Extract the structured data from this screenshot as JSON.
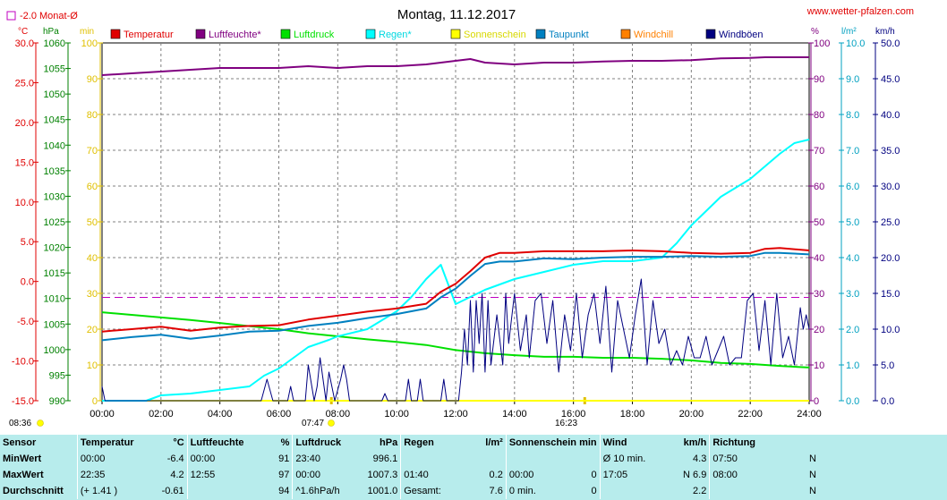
{
  "header": {
    "title": "Montag, 11.12.2017",
    "site": "www.wetter-pfalzen.com",
    "monthly_avg_label": "-2.0 Monat-Ø"
  },
  "axes": {
    "units": {
      "temp": "°C",
      "pressure": "hPa",
      "sun": "min",
      "humidity": "%",
      "rain": "l/m²",
      "wind": "km/h"
    },
    "temp_ticks": [
      "30.0",
      "25.0",
      "20.0",
      "15.0",
      "10.0",
      "5.0",
      "0.0",
      "-5.0",
      "-10.0",
      "-15.0"
    ],
    "pressure_ticks": [
      "1060",
      "1055",
      "1050",
      "1045",
      "1040",
      "1035",
      "1030",
      "1025",
      "1020",
      "1015",
      "1010",
      "1005",
      "1000",
      "995",
      "990"
    ],
    "sun_ticks": [
      "100",
      "90",
      "80",
      "70",
      "60",
      "50",
      "40",
      "30",
      "20",
      "10",
      "0"
    ],
    "humidity_ticks": [
      "100",
      "90",
      "80",
      "70",
      "60",
      "50",
      "40",
      "30",
      "20",
      "10",
      "0"
    ],
    "rain_ticks": [
      "10.0",
      "9.0",
      "8.0",
      "7.0",
      "6.0",
      "5.0",
      "4.0",
      "3.0",
      "2.0",
      "1.0",
      "0.0"
    ],
    "wind_ticks": [
      "50.0",
      "45.0",
      "40.0",
      "35.0",
      "30.0",
      "25.0",
      "20.0",
      "15.0",
      "10.0",
      "5.0",
      "0.0"
    ],
    "x_ticks": [
      "00:00",
      "02:00",
      "04:00",
      "06:00",
      "08:00",
      "10:00",
      "12:00",
      "14:00",
      "16:00",
      "18:00",
      "20:00",
      "22:00",
      "24:00"
    ],
    "sunrise": "08:36",
    "sunset": "16:23",
    "sun_marker": "07:47"
  },
  "legend": [
    {
      "label": "Temperatur",
      "color": "#e00000"
    },
    {
      "label": "Luftfeuchte*",
      "color": "#800080"
    },
    {
      "label": "Luftdruck",
      "color": "#00e000"
    },
    {
      "label": "Regen*",
      "color": "#00ffff"
    },
    {
      "label": "Sonnenschein",
      "color": "#ffff00"
    },
    {
      "label": "Taupunkt",
      "color": "#0080c0"
    },
    {
      "label": "Windchill",
      "color": "#ff8000"
    },
    {
      "label": "Windböen",
      "color": "#000080"
    }
  ],
  "chart_data": {
    "type": "line",
    "x_unit": "hour",
    "xlim": [
      0,
      24
    ],
    "grid": true,
    "monthly_avg_temp": -2.0,
    "series": [
      {
        "name": "Temperatur",
        "axis": "temp",
        "ylim": [
          -15,
          30
        ],
        "color": "#e00000",
        "x": [
          0,
          1,
          2,
          3,
          4,
          5,
          6,
          7,
          8,
          9,
          10,
          11,
          11.5,
          12,
          12.5,
          13,
          13.5,
          14,
          15,
          16,
          17,
          18,
          19,
          20,
          21,
          22,
          22.5,
          23,
          24
        ],
        "y": [
          -6.3,
          -6.0,
          -5.7,
          -6.2,
          -5.8,
          -5.6,
          -5.5,
          -4.8,
          -4.3,
          -3.8,
          -3.4,
          -2.8,
          -1.3,
          -0.3,
          1.3,
          3.0,
          3.6,
          3.6,
          3.8,
          3.8,
          3.8,
          3.9,
          3.8,
          3.6,
          3.5,
          3.6,
          4.1,
          4.2,
          3.9
        ]
      },
      {
        "name": "Luftfeuchte*",
        "axis": "humidity",
        "ylim": [
          0,
          100
        ],
        "color": "#800080",
        "x": [
          0,
          1,
          2,
          3,
          4,
          5,
          6,
          7,
          8,
          9,
          10,
          11,
          12,
          12.5,
          13,
          14,
          15,
          16,
          17,
          18,
          19,
          20,
          21,
          22,
          22.5,
          23,
          24
        ],
        "y": [
          91,
          91.5,
          92,
          92.5,
          93,
          93,
          93,
          93.5,
          93,
          93.5,
          93.5,
          94,
          95,
          95.5,
          94.5,
          94,
          94.5,
          94.5,
          94.8,
          95,
          95,
          95.2,
          95.7,
          95.8,
          96,
          96,
          96
        ]
      },
      {
        "name": "Luftdruck",
        "axis": "pressure",
        "ylim": [
          990,
          1060
        ],
        "color": "#00e000",
        "x": [
          0,
          1,
          2,
          3,
          4,
          5,
          6,
          7,
          8,
          9,
          10,
          11,
          12,
          13,
          14,
          15,
          16,
          17,
          18,
          19,
          20,
          21,
          22,
          23,
          24
        ],
        "y": [
          1007.3,
          1006.8,
          1006.3,
          1005.8,
          1005.2,
          1004.6,
          1004.0,
          1003.2,
          1002.6,
          1002.0,
          1001.5,
          1000.9,
          999.9,
          999.3,
          998.9,
          998.6,
          998.6,
          998.4,
          998.4,
          998.2,
          997.9,
          997.4,
          997.2,
          996.8,
          996.5
        ]
      },
      {
        "name": "Regen*",
        "axis": "rain",
        "ylim": [
          0,
          10
        ],
        "color": "#00ffff",
        "x": [
          0,
          1.5,
          2,
          3,
          4,
          5,
          5.5,
          6,
          7,
          7.7,
          8,
          9,
          10,
          10.5,
          11,
          11.5,
          12,
          12.5,
          13,
          14,
          15,
          16,
          17,
          18,
          19,
          19.5,
          20,
          21,
          22,
          23,
          23.5,
          24
        ],
        "y": [
          0,
          0,
          0.15,
          0.2,
          0.3,
          0.4,
          0.7,
          0.9,
          1.5,
          1.7,
          1.8,
          2.0,
          2.5,
          2.9,
          3.4,
          3.8,
          2.7,
          2.9,
          3.1,
          3.4,
          3.6,
          3.8,
          3.9,
          3.9,
          4.0,
          4.4,
          4.9,
          5.7,
          6.2,
          6.9,
          7.2,
          7.3
        ]
      },
      {
        "name": "Sonnenschein",
        "axis": "sun",
        "ylim": [
          0,
          100
        ],
        "color": "#ffff00",
        "x": [
          0,
          24
        ],
        "y": [
          0,
          0
        ]
      },
      {
        "name": "Taupunkt",
        "axis": "temp",
        "ylim": [
          -15,
          30
        ],
        "color": "#0080c0",
        "x": [
          0,
          1,
          2,
          3,
          4,
          5,
          6,
          7,
          8,
          9,
          10,
          11,
          11.5,
          12,
          12.5,
          13,
          13.5,
          14,
          15,
          16,
          17,
          18,
          19,
          20,
          21,
          22,
          22.5,
          23,
          24
        ],
        "y": [
          -7.4,
          -7.0,
          -6.7,
          -7.2,
          -6.8,
          -6.3,
          -6.2,
          -5.6,
          -5.2,
          -4.6,
          -4.1,
          -3.4,
          -2.0,
          -0.9,
          0.7,
          2.2,
          2.5,
          2.5,
          2.9,
          2.8,
          3.0,
          3.1,
          3.1,
          3.2,
          3.1,
          3.2,
          3.6,
          3.6,
          3.4
        ]
      },
      {
        "name": "Windböen",
        "axis": "wind",
        "ylim": [
          0,
          50
        ],
        "color": "#000080",
        "x": [
          0,
          0.1,
          0.3,
          5.4,
          5.6,
          5.8,
          6.3,
          6.4,
          6.5,
          6.9,
          7.0,
          7.2,
          7.3,
          7.4,
          7.6,
          7.7,
          7.9,
          8.1,
          8.2,
          8.3,
          8.4,
          8.5,
          9.5,
          9.6,
          9.7,
          10.3,
          10.4,
          10.5,
          10.7,
          10.8,
          10.9,
          11.5,
          11.6,
          11.7,
          12.1,
          12.2,
          12.3,
          12.4,
          12.5,
          12.6,
          12.7,
          12.8,
          12.9,
          13.0,
          13.1,
          13.2,
          13.4,
          13.6,
          13.7,
          13.8,
          14.0,
          14.2,
          14.4,
          14.5,
          14.7,
          14.9,
          15.1,
          15.3,
          15.5,
          15.7,
          15.9,
          16.1,
          16.3,
          16.5,
          16.7,
          16.9,
          17.1,
          17.3,
          17.5,
          17.7,
          17.9,
          18.1,
          18.3,
          18.5,
          18.7,
          18.9,
          19.1,
          19.3,
          19.5,
          19.7,
          19.9,
          20.1,
          20.3,
          20.5,
          20.7,
          20.9,
          21.1,
          21.3,
          21.5,
          21.7,
          21.9,
          22.1,
          22.3,
          22.5,
          22.7,
          22.9,
          23.1,
          23.3,
          23.5,
          23.7,
          23.8,
          23.9,
          24
        ],
        "y": [
          2,
          0,
          0,
          0,
          3,
          0,
          0,
          2,
          0,
          0,
          5,
          0,
          2,
          6,
          0,
          4,
          0,
          3,
          5,
          3,
          0,
          0,
          0,
          1,
          0,
          0,
          3,
          0,
          0,
          3,
          0,
          0,
          3,
          0,
          0,
          4,
          10,
          5,
          14,
          4,
          14,
          8,
          15,
          4,
          14,
          5,
          12,
          5,
          15,
          8,
          15,
          7,
          12,
          6,
          14,
          15,
          8,
          14,
          4,
          12,
          7,
          15,
          6,
          12,
          15,
          8,
          16,
          4,
          14,
          10,
          6,
          12,
          17,
          5,
          14,
          8,
          10,
          5,
          7,
          5,
          9,
          6,
          6,
          9,
          5,
          7,
          9,
          5,
          6,
          6,
          14,
          15,
          7,
          14,
          5,
          15,
          6,
          9,
          5,
          13,
          10,
          12,
          10
        ]
      }
    ]
  },
  "stats": {
    "headers": {
      "sensor": "Sensor",
      "temp": "Temperatur",
      "temp_unit": "°C",
      "hum": "Luftfeuchte",
      "hum_unit": "%",
      "pres": "Luftdruck",
      "pres_unit": "hPa",
      "rain": "Regen",
      "rain_unit": "l/m²",
      "sun": "Sonnenschein min",
      "wind": "Wind",
      "wind_unit": "km/h",
      "dir": "Richtung"
    },
    "rows": [
      {
        "label": "MinWert",
        "temp_time": "00:00",
        "temp_val": "-6.4",
        "hum_time": "00:00",
        "hum_val": "91",
        "pres_time": "23:40",
        "pres_val": "996.1",
        "rain_time": "",
        "rain_val": "",
        "sun_time": "",
        "sun_val": "",
        "wind_time": "Ø 10 min.",
        "wind_val": "4.3",
        "dir_time": "07:50",
        "dir_val": "N"
      },
      {
        "label": "MaxWert",
        "temp_time": "22:35",
        "temp_val": "4.2",
        "hum_time": "12:55",
        "hum_val": "97",
        "pres_time": "00:00",
        "pres_val": "1007.3",
        "rain_time": "01:40",
        "rain_val": "0.2",
        "sun_time": "00:00",
        "sun_val": "0",
        "wind_time": "17:05",
        "wind_val": "N 6.9",
        "dir_time": "08:00",
        "dir_val": "N"
      },
      {
        "label": "Durchschnitt",
        "temp_time": "(+ 1.41 )",
        "temp_val": "-0.61",
        "hum_time": "",
        "hum_val": "94",
        "pres_time": "^1.6hPa/h",
        "pres_val": "1001.0",
        "rain_time": "Gesamt:",
        "rain_val": "7.6",
        "sun_time": "0 min.",
        "sun_val": "0",
        "wind_time": "",
        "wind_val": "2.2",
        "dir_time": "",
        "dir_val": "N"
      }
    ]
  }
}
